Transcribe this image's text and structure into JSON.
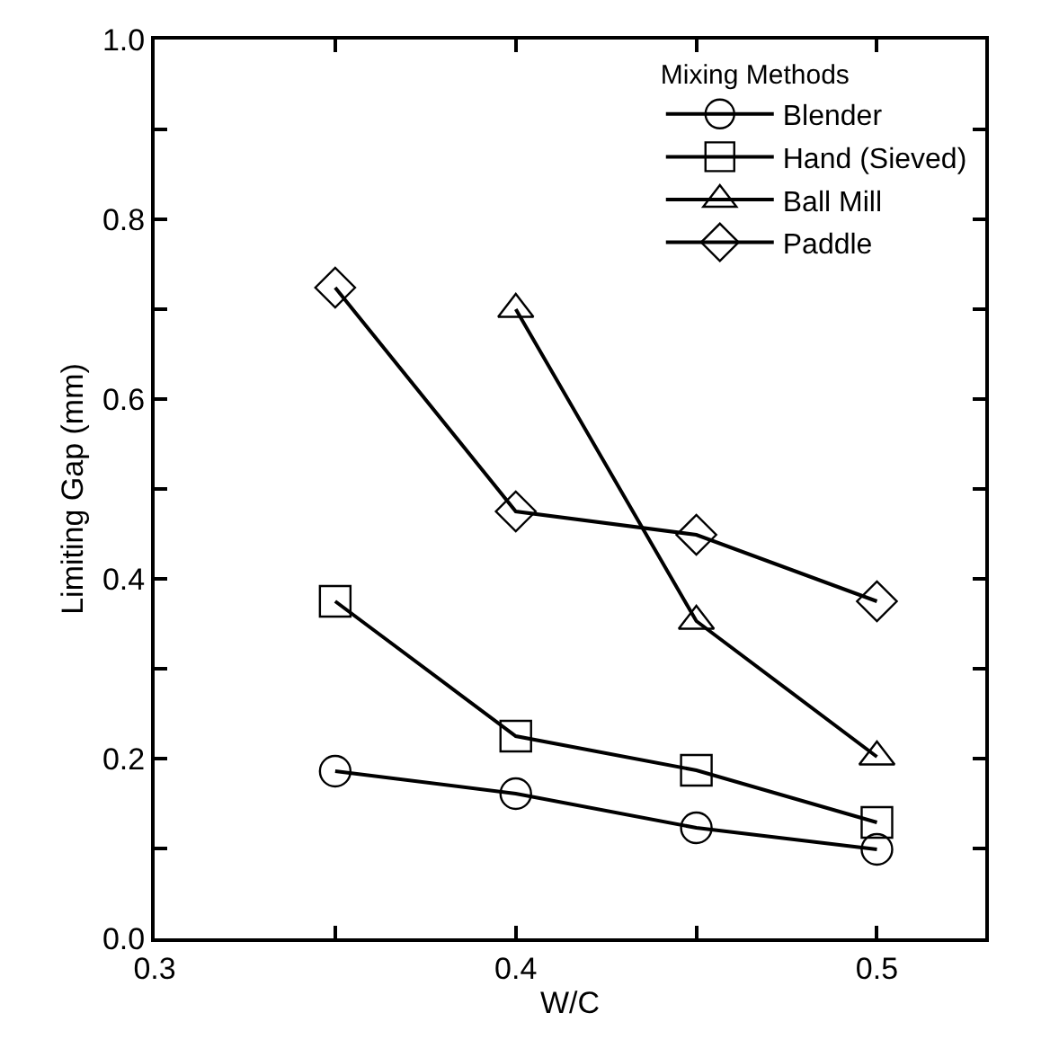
{
  "chart_data": {
    "type": "line",
    "xlabel": "W/C",
    "ylabel": "Limiting Gap (mm)",
    "legend_title": "Mixing Methods",
    "legend": "top right",
    "x": [
      0.35,
      0.4,
      0.45,
      0.5
    ],
    "series": [
      {
        "name": "Blender",
        "color": "#000000",
        "marker": "circle",
        "values": [
          0.186,
          0.161,
          0.123,
          0.099
        ]
      },
      {
        "name": "Hand (Sieved)",
        "color": "#000000",
        "marker": "square",
        "values": [
          0.375,
          0.225,
          0.187,
          0.129
        ]
      },
      {
        "name": "Ball Mill",
        "color": "#000000",
        "marker": "triangle",
        "values": [
          null,
          0.7,
          0.353,
          0.202
        ]
      },
      {
        "name": "Paddle",
        "color": "#000000",
        "marker": "diamond",
        "values": [
          0.724,
          0.475,
          0.449,
          0.375
        ]
      }
    ],
    "xlim": [
      0.3,
      0.53
    ],
    "ylim": [
      0,
      1.0
    ],
    "xticks": [
      0.3,
      {
        "value": 0.35,
        "label": null
      },
      0.4,
      {
        "value": 0.45,
        "label": null
      },
      0.5
    ],
    "yticks": [
      {
        "value": 0,
        "label": "0.0"
      },
      {
        "value": 0.1,
        "label": null
      },
      0.2,
      {
        "value": 0.3,
        "label": null
      },
      0.4,
      {
        "value": 0.5,
        "label": null
      },
      0.6,
      {
        "value": 0.7,
        "label": null
      },
      0.8,
      {
        "value": 0.9,
        "label": null
      },
      {
        "value": 1.0,
        "label": "1.0"
      }
    ],
    "line_style": "solid"
  }
}
